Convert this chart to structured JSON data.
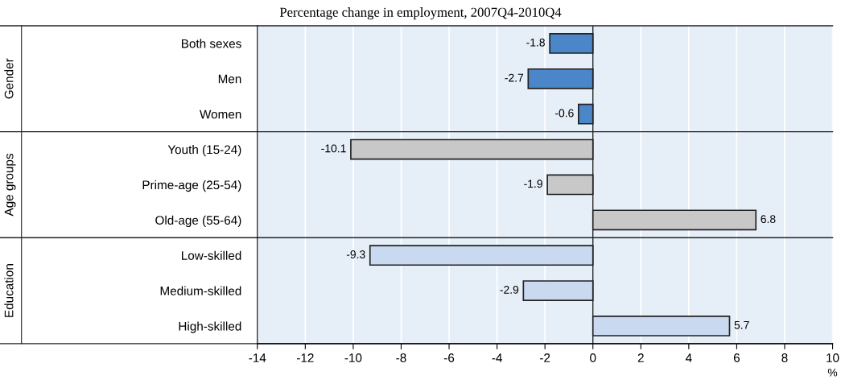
{
  "chart_data": {
    "type": "bar",
    "orientation": "horizontal",
    "title": "Percentage change in employment, 2007Q4-2010Q4",
    "xlabel": "%",
    "categories": [
      "Both sexes",
      "Men",
      "Women",
      "Youth (15-24)",
      "Prime-age (25-54)",
      "Old-age (55-64)",
      "Low-skilled",
      "Medium-skilled",
      "High-skilled"
    ],
    "values": [
      -1.8,
      -2.7,
      -0.6,
      -10.1,
      -1.9,
      6.8,
      -9.3,
      -2.9,
      5.7
    ],
    "colors": [
      "#4a86c8",
      "#4a86c8",
      "#4a86c8",
      "#c8c8c8",
      "#c8c8c8",
      "#c8c8c8",
      "#c9d9ef",
      "#c9d9ef",
      "#c9d9ef"
    ],
    "data_labels": true,
    "xlim": [
      -14,
      10
    ],
    "xticks": [
      -14,
      -12,
      -10,
      -8,
      -6,
      -4,
      -2,
      0,
      2,
      4,
      6,
      8,
      10
    ],
    "grid": "x",
    "annotations": [
      "Gender",
      "Age groups",
      "Education"
    ]
  }
}
